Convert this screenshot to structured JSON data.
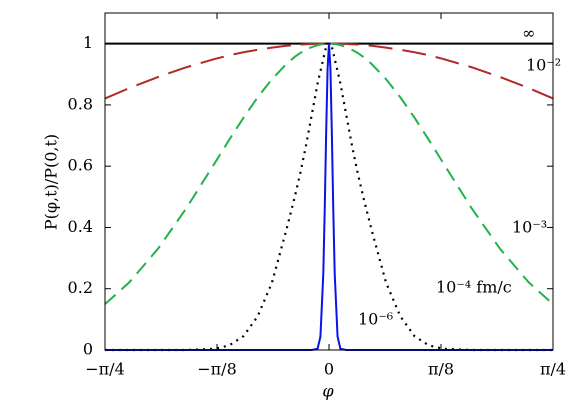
{
  "chart_data": {
    "type": "line",
    "xlabel": "φ",
    "ylabel": "P(φ,t)/P(0,t)",
    "x": [
      -0.785,
      -0.7,
      -0.6,
      -0.5,
      -0.4,
      -0.35,
      -0.3,
      -0.25,
      -0.2,
      -0.15,
      -0.12,
      -0.1,
      -0.08,
      -0.06,
      -0.04,
      -0.03,
      -0.02,
      -0.015,
      -0.01,
      -0.005,
      0,
      0.005,
      0.01,
      0.015,
      0.02,
      0.03,
      0.04,
      0.06,
      0.08,
      0.1,
      0.12,
      0.15,
      0.2,
      0.25,
      0.3,
      0.35,
      0.4,
      0.5,
      0.6,
      0.7,
      0.785
    ],
    "series": [
      {
        "name": "∞",
        "color": "#000000",
        "dash": "solid",
        "values": [
          1,
          1,
          1,
          1,
          1,
          1,
          1,
          1,
          1,
          1,
          1,
          1,
          1,
          1,
          1,
          1,
          1,
          1,
          1,
          1,
          1,
          1,
          1,
          1,
          1,
          1,
          1,
          1,
          1,
          1,
          1,
          1,
          1,
          1,
          1,
          1,
          1,
          1,
          1,
          1,
          1
        ]
      },
      {
        "name": "10⁻²",
        "color": "#b02a2a",
        "dash": "long",
        "values": [
          0.821,
          0.855,
          0.891,
          0.923,
          0.95,
          0.962,
          0.972,
          0.98,
          0.987,
          0.993,
          0.995,
          0.997,
          0.998,
          0.999,
          1,
          1,
          1,
          1,
          1,
          1,
          1,
          1,
          1,
          1,
          1,
          1,
          1,
          0.999,
          0.998,
          0.997,
          0.995,
          0.993,
          0.987,
          0.98,
          0.972,
          0.962,
          0.95,
          0.923,
          0.891,
          0.855,
          0.821
        ]
      },
      {
        "name": "10⁻³",
        "color": "#22b24c",
        "dash": "dashed",
        "values": [
          0.15,
          0.221,
          0.33,
          0.463,
          0.611,
          0.686,
          0.758,
          0.825,
          0.884,
          0.933,
          0.957,
          0.97,
          0.98,
          0.989,
          0.995,
          0.997,
          0.999,
          0.999,
          1,
          1,
          1,
          1,
          1,
          0.999,
          0.999,
          0.997,
          0.995,
          0.989,
          0.98,
          0.97,
          0.957,
          0.933,
          0.884,
          0.825,
          0.758,
          0.686,
          0.611,
          0.463,
          0.33,
          0.221,
          0.15
        ]
      },
      {
        "name": "10⁻⁴ fm/c",
        "color": "#000000",
        "dash": "dotted",
        "values": [
          0,
          0,
          0,
          0,
          0.004,
          0.015,
          0.045,
          0.11,
          0.22,
          0.39,
          0.5,
          0.58,
          0.67,
          0.77,
          0.87,
          0.91,
          0.95,
          0.97,
          0.99,
          1,
          1,
          1,
          0.99,
          0.97,
          0.95,
          0.91,
          0.87,
          0.77,
          0.67,
          0.58,
          0.5,
          0.39,
          0.22,
          0.11,
          0.045,
          0.015,
          0.004,
          0,
          0,
          0,
          0
        ]
      },
      {
        "name": "10⁻⁶",
        "color": "#0a14e6",
        "dash": "solid",
        "values": [
          0,
          0,
          0,
          0,
          0,
          0,
          0,
          0,
          0,
          0,
          0,
          0,
          0,
          0,
          0.004,
          0.044,
          0.249,
          0.458,
          0.707,
          0.917,
          1,
          0.917,
          0.707,
          0.458,
          0.249,
          0.044,
          0.004,
          0,
          0,
          0,
          0,
          0,
          0,
          0,
          0,
          0,
          0,
          0,
          0,
          0,
          0
        ]
      }
    ],
    "xlim": [
      -0.7854,
      0.7854
    ],
    "xticks": [
      {
        "value": -0.7854,
        "label": "−π/4"
      },
      {
        "value": -0.3927,
        "label": "−π/8"
      },
      0,
      {
        "value": 0.3927,
        "label": "π/8"
      },
      {
        "value": 0.7854,
        "label": "π/4"
      }
    ],
    "ylim": [
      0,
      1.1
    ],
    "yticks": [
      0,
      0.2,
      0.4,
      0.6,
      0.8,
      1
    ]
  }
}
